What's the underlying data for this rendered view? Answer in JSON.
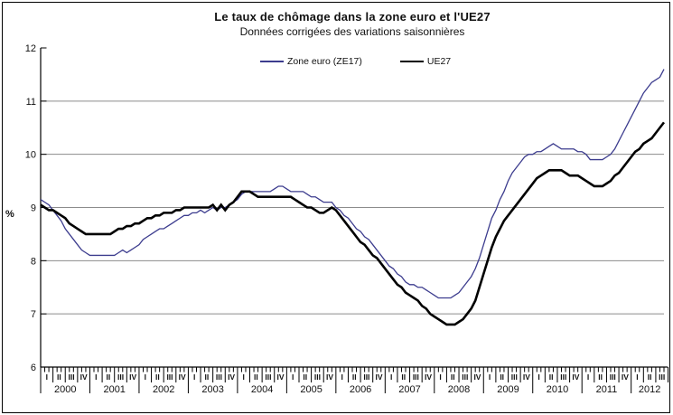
{
  "chart_data": {
    "type": "line",
    "title": "Le taux de chômage dans la zone euro et l'UE27",
    "subtitle": "Données corrigées des variations saisonnières",
    "xlabel": "",
    "ylabel": "%",
    "ylim": [
      6,
      12
    ],
    "yticks": [
      6,
      7,
      8,
      9,
      10,
      11,
      12
    ],
    "grid": "horizontal",
    "legend_position": "top-center",
    "x_frequency": "monthly",
    "x_start": "2000-01",
    "x_end": "2012-09",
    "years": [
      "2000",
      "2001",
      "2002",
      "2003",
      "2004",
      "2005",
      "2006",
      "2007",
      "2008",
      "2009",
      "2010",
      "2011",
      "2012"
    ],
    "quarter_labels": [
      "I",
      "II",
      "III",
      "IV"
    ],
    "colors": {
      "axis": "#000000",
      "grid": "#8c8c8c",
      "text": "#111111",
      "background": "#ffffff"
    },
    "series": [
      {
        "name": "Zone euro (ZE17)",
        "color": "#3c3c8e",
        "width": 1.3,
        "values": [
          9.15,
          9.1,
          9.05,
          8.95,
          8.85,
          8.75,
          8.6,
          8.5,
          8.4,
          8.3,
          8.2,
          8.15,
          8.1,
          8.1,
          8.1,
          8.1,
          8.1,
          8.1,
          8.1,
          8.15,
          8.2,
          8.15,
          8.2,
          8.25,
          8.3,
          8.4,
          8.45,
          8.5,
          8.55,
          8.6,
          8.6,
          8.65,
          8.7,
          8.75,
          8.8,
          8.85,
          8.85,
          8.9,
          8.9,
          8.95,
          8.9,
          8.95,
          9.0,
          8.95,
          9.0,
          9.0,
          9.05,
          9.1,
          9.15,
          9.25,
          9.3,
          9.3,
          9.3,
          9.3,
          9.3,
          9.3,
          9.3,
          9.35,
          9.4,
          9.4,
          9.35,
          9.3,
          9.3,
          9.3,
          9.3,
          9.25,
          9.2,
          9.2,
          9.15,
          9.1,
          9.1,
          9.1,
          9.0,
          8.95,
          8.85,
          8.8,
          8.7,
          8.6,
          8.55,
          8.45,
          8.4,
          8.3,
          8.2,
          8.1,
          8.0,
          7.9,
          7.85,
          7.75,
          7.7,
          7.6,
          7.55,
          7.55,
          7.5,
          7.5,
          7.45,
          7.4,
          7.35,
          7.3,
          7.3,
          7.3,
          7.3,
          7.35,
          7.4,
          7.5,
          7.6,
          7.7,
          7.85,
          8.05,
          8.3,
          8.55,
          8.8,
          8.95,
          9.15,
          9.3,
          9.5,
          9.65,
          9.75,
          9.85,
          9.95,
          10.0,
          10.0,
          10.05,
          10.05,
          10.1,
          10.15,
          10.2,
          10.15,
          10.1,
          10.1,
          10.1,
          10.1,
          10.05,
          10.05,
          10.0,
          9.9,
          9.9,
          9.9,
          9.9,
          9.95,
          10.0,
          10.1,
          10.25,
          10.4,
          10.55,
          10.7,
          10.85,
          11.0,
          11.15,
          11.25,
          11.35,
          11.4,
          11.45,
          11.6
        ]
      },
      {
        "name": "UE27",
        "color": "#000000",
        "width": 2.6,
        "values": [
          9.05,
          9.0,
          8.95,
          8.95,
          8.9,
          8.85,
          8.8,
          8.7,
          8.65,
          8.6,
          8.55,
          8.5,
          8.5,
          8.5,
          8.5,
          8.5,
          8.5,
          8.5,
          8.55,
          8.6,
          8.6,
          8.65,
          8.65,
          8.7,
          8.7,
          8.75,
          8.8,
          8.8,
          8.85,
          8.85,
          8.9,
          8.9,
          8.9,
          8.95,
          8.95,
          9.0,
          9.0,
          9.0,
          9.0,
          9.0,
          9.0,
          9.0,
          9.05,
          8.95,
          9.05,
          8.95,
          9.05,
          9.1,
          9.2,
          9.3,
          9.3,
          9.3,
          9.25,
          9.2,
          9.2,
          9.2,
          9.2,
          9.2,
          9.2,
          9.2,
          9.2,
          9.2,
          9.15,
          9.1,
          9.05,
          9.0,
          9.0,
          8.95,
          8.9,
          8.9,
          8.95,
          9.0,
          8.95,
          8.85,
          8.75,
          8.65,
          8.55,
          8.45,
          8.35,
          8.3,
          8.2,
          8.1,
          8.05,
          7.95,
          7.85,
          7.75,
          7.65,
          7.55,
          7.5,
          7.4,
          7.35,
          7.3,
          7.25,
          7.15,
          7.1,
          7.0,
          6.95,
          6.9,
          6.85,
          6.8,
          6.8,
          6.8,
          6.85,
          6.9,
          7.0,
          7.1,
          7.25,
          7.5,
          7.75,
          8.0,
          8.25,
          8.45,
          8.6,
          8.75,
          8.85,
          8.95,
          9.05,
          9.15,
          9.25,
          9.35,
          9.45,
          9.55,
          9.6,
          9.65,
          9.7,
          9.7,
          9.7,
          9.7,
          9.65,
          9.6,
          9.6,
          9.6,
          9.55,
          9.5,
          9.45,
          9.4,
          9.4,
          9.4,
          9.45,
          9.5,
          9.6,
          9.65,
          9.75,
          9.85,
          9.95,
          10.05,
          10.1,
          10.2,
          10.25,
          10.3,
          10.4,
          10.5,
          10.6
        ]
      }
    ]
  }
}
